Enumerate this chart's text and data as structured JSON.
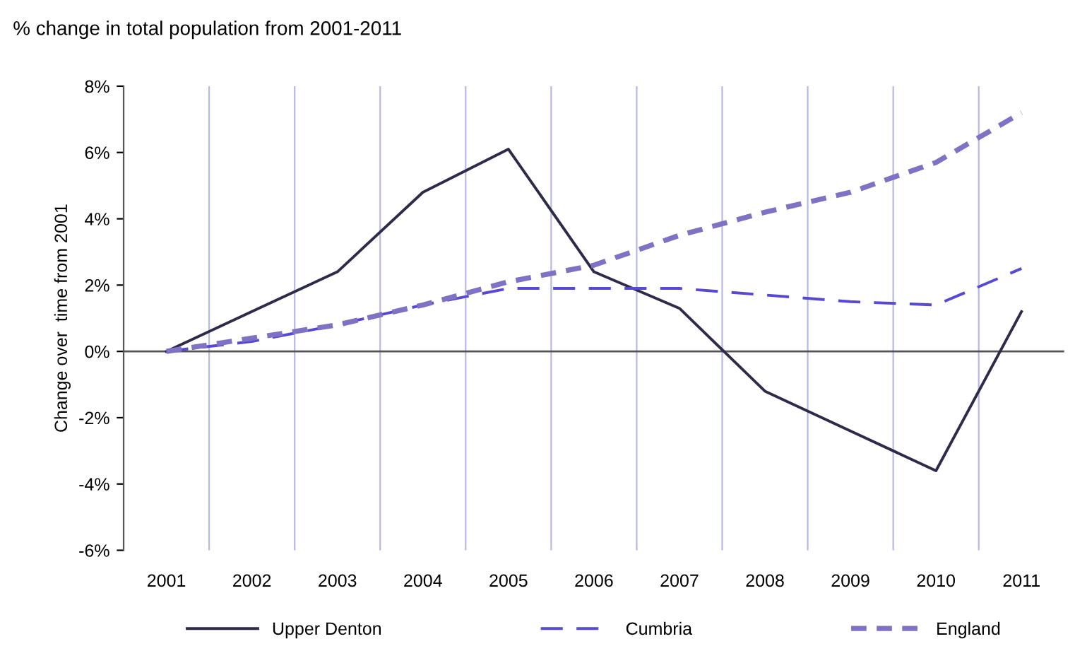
{
  "chart_data": {
    "type": "line",
    "title": "% change in total population from 2001-2011",
    "ylabel": "Change over  time from 2001",
    "categories": [
      "2001",
      "2002",
      "2003",
      "2004",
      "2005",
      "2006",
      "2007",
      "2008",
      "2009",
      "2010",
      "2011"
    ],
    "series": [
      {
        "name": "Upper Denton",
        "color": "#2e2b4a",
        "line_style": "solid",
        "values": [
          0,
          1.2,
          2.4,
          4.8,
          6.1,
          2.4,
          1.3,
          -1.2,
          -2.4,
          -3.6,
          1.2
        ]
      },
      {
        "name": "Cumbria",
        "color": "#5549d6",
        "line_style": "dashed",
        "values": [
          0,
          0.3,
          0.8,
          1.4,
          1.9,
          1.9,
          1.9,
          1.7,
          1.5,
          1.4,
          2.5
        ]
      },
      {
        "name": "England",
        "color": "#7f72c4",
        "line_style": "dotted",
        "values": [
          0,
          0.4,
          0.8,
          1.4,
          2.1,
          2.6,
          3.5,
          4.2,
          4.8,
          5.7,
          7.2
        ]
      }
    ],
    "ylim": [
      -6,
      8
    ],
    "yticks": [
      {
        "value": -6,
        "label": "-6%"
      },
      {
        "value": -4,
        "label": "-4%"
      },
      {
        "value": -2,
        "label": "-2%"
      },
      {
        "value": 0,
        "label": "0%"
      },
      {
        "value": 2,
        "label": "2%"
      },
      {
        "value": 4,
        "label": "4%"
      },
      {
        "value": 6,
        "label": "6%"
      },
      {
        "value": 8,
        "label": "8%"
      }
    ],
    "ref_lines": [
      {
        "axis": "y",
        "value": 0,
        "color": "#555555"
      }
    ],
    "grid": "x",
    "legend": "bottom"
  }
}
